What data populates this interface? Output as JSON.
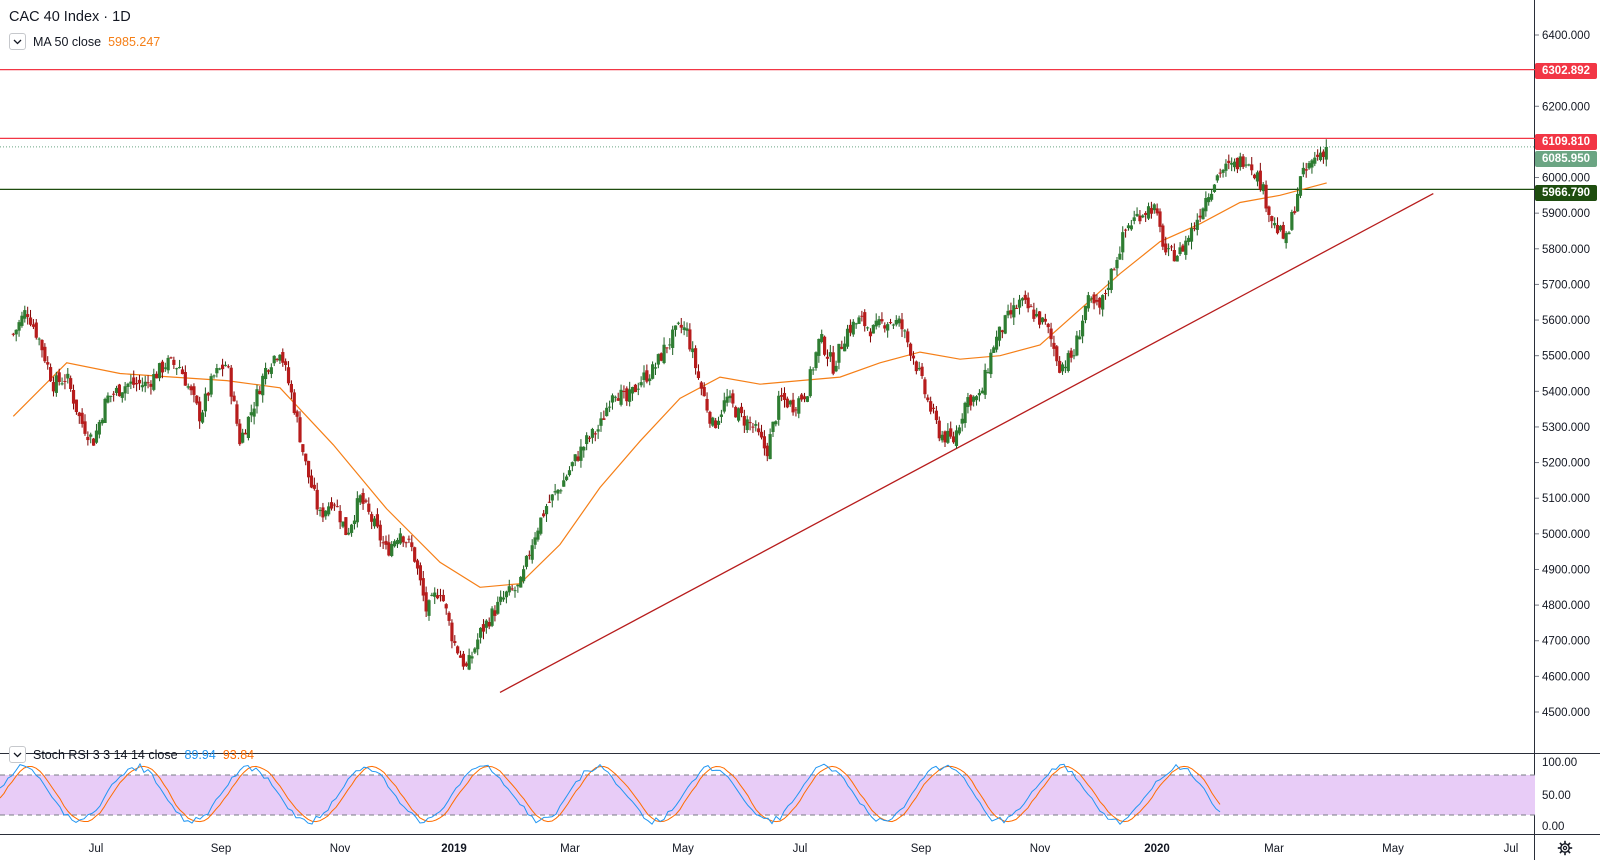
{
  "header": {
    "title": "CAC 40 Index · 1D"
  },
  "ma_legend": {
    "label": "MA 50 close",
    "value": "5985.247",
    "color": "#f57f17"
  },
  "stoch_legend": {
    "label": "Stoch RSI 3 3 14 14 close",
    "k_value": "89.94",
    "d_value": "93.84",
    "k_color": "#2196f3",
    "d_color": "#ff6d00"
  },
  "price_tags": {
    "resistance_high": {
      "label": "6302.892",
      "color": "#f23645"
    },
    "resistance": {
      "label": "6109.810",
      "color": "#f23645"
    },
    "last_price": {
      "label": "6085.950",
      "color": "#6ba583"
    },
    "support": {
      "label": "5966.790",
      "color": "#1e4d0f"
    }
  },
  "chart_data": {
    "type": "candlestick",
    "title": "CAC 40 Index · 1D",
    "x_labels": [
      "Jul",
      "Sep",
      "Nov",
      "2019",
      "Mar",
      "May",
      "Jul",
      "Sep",
      "Nov",
      "2020",
      "Mar",
      "May",
      "Jul"
    ],
    "y_ticks": [
      "6400.000",
      "6300.000",
      "6200.000",
      "6100.000",
      "6000.000",
      "5900.000",
      "5800.000",
      "5700.000",
      "5600.000",
      "5500.000",
      "5400.000",
      "5300.000",
      "5200.000",
      "5100.000",
      "5000.000",
      "4900.000",
      "4800.000",
      "4700.000",
      "4600.000",
      "4500.000"
    ],
    "ylim": [
      4470,
      6480
    ],
    "colors": {
      "up": "#26a69a",
      "up_body": "#1b5e20",
      "down": "#b71c1c",
      "ma": "#f57f17"
    },
    "price_path": [
      [
        2018.42,
        5560
      ],
      [
        2018.44,
        5630
      ],
      [
        2018.46,
        5540
      ],
      [
        2018.48,
        5420
      ],
      [
        2018.5,
        5440
      ],
      [
        2018.52,
        5320
      ],
      [
        2018.54,
        5260
      ],
      [
        2018.56,
        5380
      ],
      [
        2018.59,
        5420
      ],
      [
        2018.62,
        5420
      ],
      [
        2018.65,
        5480
      ],
      [
        2018.67,
        5470
      ],
      [
        2018.7,
        5330
      ],
      [
        2018.72,
        5440
      ],
      [
        2018.74,
        5480
      ],
      [
        2018.76,
        5260
      ],
      [
        2018.78,
        5360
      ],
      [
        2018.8,
        5470
      ],
      [
        2018.82,
        5520
      ],
      [
        2018.84,
        5370
      ],
      [
        2018.86,
        5180
      ],
      [
        2018.88,
        5050
      ],
      [
        2018.9,
        5100
      ],
      [
        2018.92,
        5000
      ],
      [
        2018.94,
        5100
      ],
      [
        2018.96,
        5030
      ],
      [
        2018.98,
        4950
      ],
      [
        2019.0,
        5010
      ],
      [
        2019.02,
        4950
      ],
      [
        2019.04,
        4780
      ],
      [
        2019.06,
        4850
      ],
      [
        2019.08,
        4700
      ],
      [
        2019.1,
        4620
      ],
      [
        2019.12,
        4720
      ],
      [
        2019.14,
        4780
      ],
      [
        2019.16,
        4830
      ],
      [
        2019.18,
        4850
      ],
      [
        2019.2,
        4990
      ],
      [
        2019.22,
        5080
      ],
      [
        2019.24,
        5130
      ],
      [
        2019.26,
        5200
      ],
      [
        2019.28,
        5260
      ],
      [
        2019.3,
        5300
      ],
      [
        2019.32,
        5410
      ],
      [
        2019.34,
        5370
      ],
      [
        2019.36,
        5430
      ],
      [
        2019.38,
        5460
      ],
      [
        2019.4,
        5530
      ],
      [
        2019.42,
        5580
      ],
      [
        2019.43,
        5570
      ],
      [
        2019.45,
        5420
      ],
      [
        2019.47,
        5300
      ],
      [
        2019.49,
        5380
      ],
      [
        2019.51,
        5330
      ],
      [
        2019.53,
        5300
      ],
      [
        2019.55,
        5230
      ],
      [
        2019.57,
        5380
      ],
      [
        2019.59,
        5360
      ],
      [
        2019.61,
        5400
      ],
      [
        2019.63,
        5550
      ],
      [
        2019.65,
        5470
      ],
      [
        2019.67,
        5570
      ],
      [
        2019.69,
        5600
      ],
      [
        2019.71,
        5570
      ],
      [
        2019.73,
        5600
      ],
      [
        2019.75,
        5590
      ],
      [
        2019.77,
        5500
      ],
      [
        2019.79,
        5380
      ],
      [
        2019.81,
        5280
      ],
      [
        2019.83,
        5260
      ],
      [
        2019.85,
        5380
      ],
      [
        2019.87,
        5380
      ],
      [
        2019.89,
        5530
      ],
      [
        2019.91,
        5600
      ],
      [
        2019.93,
        5650
      ],
      [
        2019.95,
        5620
      ],
      [
        2019.97,
        5580
      ],
      [
        2019.99,
        5470
      ],
      [
        2020.01,
        5500
      ],
      [
        2020.03,
        5650
      ],
      [
        2020.05,
        5630
      ],
      [
        2020.07,
        5750
      ],
      [
        2020.09,
        5860
      ],
      [
        2020.11,
        5900
      ],
      [
        2020.13,
        5920
      ],
      [
        2020.15,
        5780
      ],
      [
        2020.17,
        5790
      ],
      [
        2020.19,
        5860
      ],
      [
        2020.21,
        5950
      ],
      [
        2020.23,
        6020
      ],
      [
        2020.25,
        6030
      ],
      [
        2020.27,
        6060
      ],
      [
        2020.29,
        5990
      ],
      [
        2020.31,
        5870
      ],
      [
        2020.33,
        5820
      ],
      [
        2020.35,
        5990
      ],
      [
        2020.37,
        6050
      ],
      [
        2020.39,
        6086
      ]
    ],
    "ma50_path": [
      [
        2018.42,
        5330
      ],
      [
        2018.5,
        5480
      ],
      [
        2018.58,
        5450
      ],
      [
        2018.66,
        5440
      ],
      [
        2018.74,
        5430
      ],
      [
        2018.82,
        5410
      ],
      [
        2018.9,
        5250
      ],
      [
        2018.98,
        5070
      ],
      [
        2019.06,
        4920
      ],
      [
        2019.12,
        4850
      ],
      [
        2019.18,
        4860
      ],
      [
        2019.24,
        4970
      ],
      [
        2019.3,
        5130
      ],
      [
        2019.36,
        5260
      ],
      [
        2019.42,
        5380
      ],
      [
        2019.48,
        5440
      ],
      [
        2019.54,
        5420
      ],
      [
        2019.6,
        5430
      ],
      [
        2019.66,
        5440
      ],
      [
        2019.72,
        5480
      ],
      [
        2019.78,
        5510
      ],
      [
        2019.84,
        5490
      ],
      [
        2019.9,
        5500
      ],
      [
        2019.96,
        5530
      ],
      [
        2020.02,
        5630
      ],
      [
        2020.08,
        5730
      ],
      [
        2020.14,
        5820
      ],
      [
        2020.2,
        5870
      ],
      [
        2020.26,
        5930
      ],
      [
        2020.32,
        5950
      ],
      [
        2020.39,
        5985
      ]
    ],
    "horizontal_levels": [
      6302.892,
      6109.81,
      6085.95,
      5966.79
    ],
    "trendline": {
      "from": [
        2019.15,
        4555
      ],
      "to": [
        2020.55,
        5955
      ]
    },
    "stoch_rsi": {
      "ylim": [
        0,
        100
      ],
      "levels": [
        80,
        20
      ],
      "ticks": [
        "100.00",
        "50.00",
        "0.00"
      ],
      "k": 89.94,
      "d": 93.84
    }
  }
}
